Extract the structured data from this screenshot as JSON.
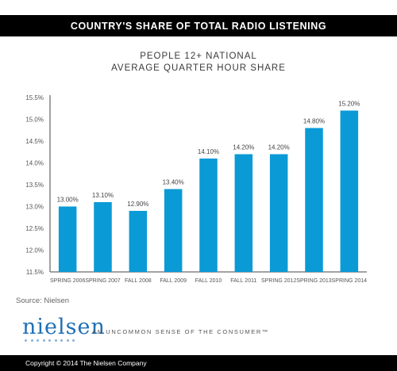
{
  "header": {
    "title": "COUNTRY'S SHARE OF TOTAL RADIO LISTENING"
  },
  "chart_data": {
    "type": "bar",
    "title": "COUNTRY'S SHARE OF TOTAL RADIO LISTENING",
    "subtitle": [
      "PEOPLE 12+ NATIONAL",
      "AVERAGE QUARTER HOUR SHARE"
    ],
    "categories": [
      "SPRING 2006",
      "SPRING 2007",
      "FALL 2008",
      "FALL 2009",
      "FALL 2010",
      "FALL 2011",
      "SPRING 2012",
      "SPRING 2013",
      "SPRING 2014"
    ],
    "values": [
      13.0,
      13.1,
      12.9,
      13.4,
      14.1,
      14.2,
      14.2,
      14.8,
      15.2
    ],
    "data_labels": [
      "13.00%",
      "13.10%",
      "12.90%",
      "13.40%",
      "14.10%",
      "14.20%",
      "14.20%",
      "14.80%",
      "15.20%"
    ],
    "yticks": [
      11.5,
      12.0,
      12.5,
      13.0,
      13.5,
      14.0,
      14.5,
      15.0,
      15.5
    ],
    "ytick_labels": [
      "11.5%",
      "12.0%",
      "12.5%",
      "13.0%",
      "13.5%",
      "14.0%",
      "14.5%",
      "15.0%",
      "15.5%"
    ],
    "ylim": [
      11.5,
      15.5
    ],
    "xlabel": "",
    "ylabel": "",
    "bar_color": "#0a9ad6",
    "grid": false,
    "legend": "none"
  },
  "source": "Source: Nielsen",
  "brand": {
    "logo": "nielsen",
    "tagline": "AN UNCOMMON SENSE OF THE CONSUMER™",
    "logo_color": "#1f6fb5"
  },
  "footer": {
    "copyright": "Copyright © 2014 The Nielsen Company"
  }
}
